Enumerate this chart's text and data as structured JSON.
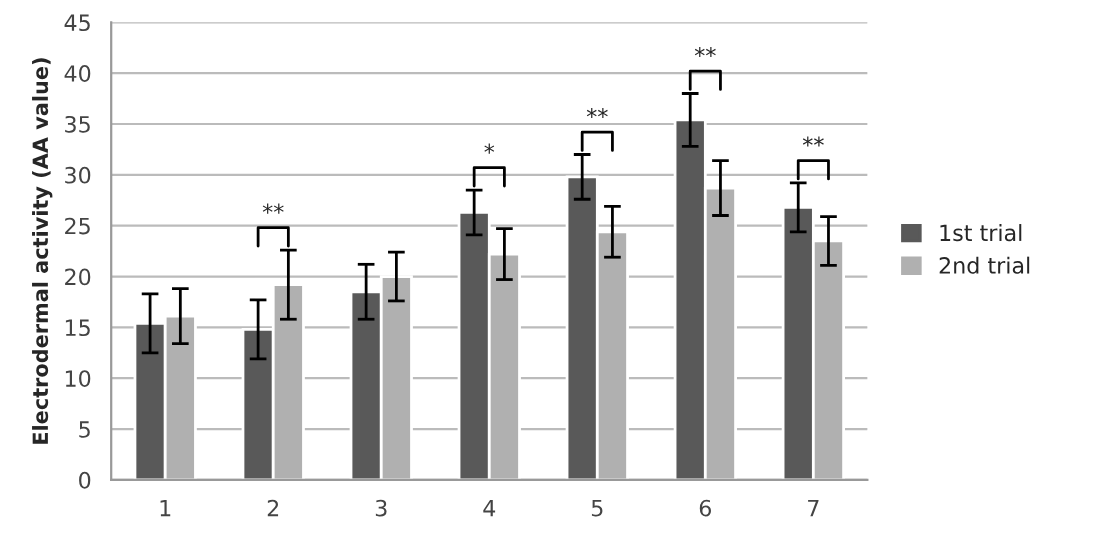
{
  "chart_data": {
    "type": "bar",
    "ylabel": "Electrodermal activity (AA value)",
    "categories": [
      "1",
      "2",
      "3",
      "4",
      "5",
      "6",
      "7"
    ],
    "series": [
      {
        "name": "1st trial",
        "color": "#595959",
        "values": [
          15.4,
          14.8,
          18.5,
          26.3,
          29.8,
          35.4,
          26.8
        ],
        "errors": [
          2.9,
          2.9,
          2.7,
          2.2,
          2.2,
          2.6,
          2.4
        ],
        "value_labels": [
          null,
          null,
          null,
          "*",
          "**",
          "**",
          "**"
        ]
      },
      {
        "name": "2nd trial",
        "color": "#b0b0b0",
        "values": [
          16.1,
          19.2,
          20.0,
          22.2,
          24.4,
          28.7,
          23.5
        ],
        "errors": [
          2.7,
          3.4,
          2.4,
          2.5,
          2.5,
          2.7,
          2.4
        ],
        "value_labels": [
          null,
          "**",
          null,
          null,
          null,
          null,
          null
        ]
      }
    ],
    "ylim": [
      0,
      45
    ],
    "yticks": [
      0,
      5,
      10,
      15,
      20,
      25,
      30,
      35,
      40,
      45
    ],
    "grid": "y",
    "legend": "right"
  }
}
